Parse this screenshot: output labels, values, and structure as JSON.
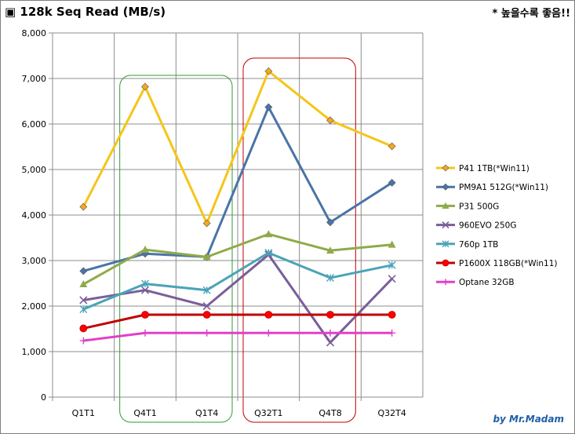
{
  "header": {
    "title": "▣ 128k Seq Read (MB/s)",
    "note": "* 높을수록 좋음!!",
    "credit": "by Mr.Madam"
  },
  "chart_data": {
    "type": "line",
    "title": "▣ 128k Seq Read (MB/s)",
    "xlabel": "",
    "ylabel": "",
    "categories": [
      "Q1T1",
      "Q4T1",
      "Q1T4",
      "Q32T1",
      "Q4T8",
      "Q32T4"
    ],
    "ylim": [
      0,
      8000
    ],
    "yticks": [
      0,
      1000,
      2000,
      3000,
      4000,
      5000,
      6000,
      7000,
      8000
    ],
    "ytick_labels": [
      "0",
      "1,000",
      "2,000",
      "3,000",
      "4,000",
      "5,000",
      "6,000",
      "7,000",
      "8,000"
    ],
    "grid": true,
    "legend_position": "right",
    "series": [
      {
        "name": "P41 1TB(*Win11)",
        "values": [
          4180,
          6820,
          3820,
          7160,
          6080,
          5510
        ],
        "color": "#f5c518",
        "marker": "diamond",
        "marker_color": "#f5a623"
      },
      {
        "name": "PM9A1 512G(*Win11)",
        "values": [
          2770,
          3150,
          3080,
          6370,
          3840,
          4710
        ],
        "color": "#4a74a8",
        "marker": "diamond",
        "marker_color": "#4a74a8"
      },
      {
        "name": "P31 500G",
        "values": [
          2480,
          3240,
          3080,
          3580,
          3220,
          3350
        ],
        "color": "#8faa4b",
        "marker": "triangle",
        "marker_color": "#8faa4b"
      },
      {
        "name": "960EVO 250G",
        "values": [
          2130,
          2350,
          2000,
          3130,
          1200,
          2600
        ],
        "color": "#7a5e9a",
        "marker": "x",
        "marker_color": "#7a5e9a"
      },
      {
        "name": "760p 1TB",
        "values": [
          1930,
          2490,
          2350,
          3170,
          2620,
          2900
        ],
        "color": "#4ba3b8",
        "marker": "asterisk",
        "marker_color": "#4ba3b8"
      },
      {
        "name": "P1600X 118GB(*Win11)",
        "values": [
          1510,
          1810,
          1810,
          1810,
          1810,
          1810
        ],
        "color": "#c00000",
        "marker": "circle",
        "marker_color": "#ff0000"
      },
      {
        "name": "Optane 32GB",
        "values": [
          1240,
          1410,
          1410,
          1410,
          1410,
          1410
        ],
        "color": "#e040c8",
        "marker": "plus",
        "marker_color": "#e040c8"
      }
    ],
    "highlight_boxes": [
      {
        "from": "Q4T1",
        "to": "Q1T4",
        "color": "#2e9e2e"
      },
      {
        "from": "Q32T1",
        "to": "Q4T8",
        "color": "#c00000"
      }
    ]
  }
}
